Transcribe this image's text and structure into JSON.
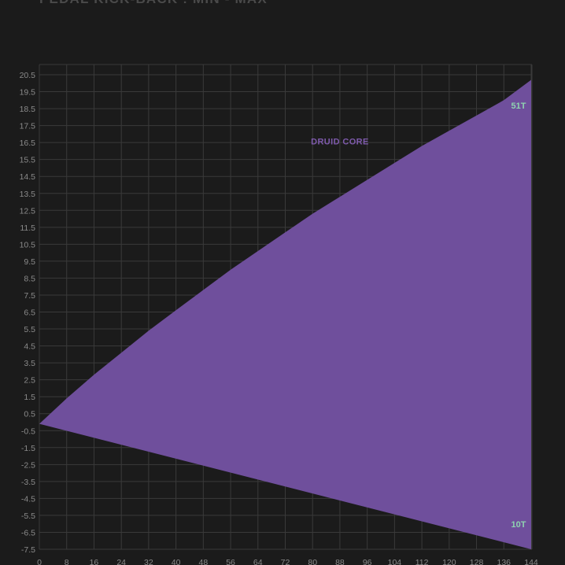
{
  "chart_data": {
    "type": "area",
    "title": "PEDAL KICK-BACK : MIN - MAX",
    "xlabel": "",
    "ylabel": "",
    "xlim": [
      0,
      144
    ],
    "ylim": [
      -7.5,
      20.5
    ],
    "grid": true,
    "x_ticks": [
      0,
      8,
      16,
      24,
      32,
      40,
      48,
      56,
      64,
      72,
      80,
      88,
      96,
      104,
      112,
      120,
      128,
      136,
      144
    ],
    "y_ticks": [
      "20.5",
      "19.5",
      "18.5",
      "17.5",
      "16.5",
      "15.5",
      "14.5",
      "13.5",
      "12.5",
      "11.5",
      "10.5",
      "9.5",
      "8.5",
      "7.5",
      "6.5",
      "5.5",
      "4.5",
      "3.5",
      "2.5",
      "1.5",
      "0.5",
      "-0.5",
      "-1.5",
      "-2.5",
      "-3.5",
      "-4.5",
      "-5.5",
      "-6.5",
      "-7.5"
    ],
    "series": [
      {
        "name": "DRUID CORE",
        "color": "#6f4f9c",
        "label_color": "#7e5aac",
        "upper": {
          "name": "51T",
          "label_color": "#8fd3b0",
          "x": [
            0,
            8,
            16,
            24,
            32,
            40,
            48,
            56,
            64,
            72,
            80,
            88,
            96,
            104,
            112,
            120,
            128,
            136,
            144
          ],
          "y": [
            -0.1,
            1.4,
            2.8,
            4.1,
            5.4,
            6.6,
            7.8,
            9.0,
            10.1,
            11.2,
            12.3,
            13.3,
            14.3,
            15.3,
            16.3,
            17.2,
            18.1,
            19.0,
            20.2
          ]
        },
        "lower": {
          "name": "10T",
          "label_color": "#8fd3b0",
          "x": [
            0,
            144
          ],
          "y": [
            -0.1,
            -7.5
          ]
        }
      }
    ]
  },
  "colors": {
    "background": "#1b1b1b",
    "grid": "#3a3a3a",
    "tick_text": "#8a8a8a",
    "title": "#4a4a4a"
  }
}
